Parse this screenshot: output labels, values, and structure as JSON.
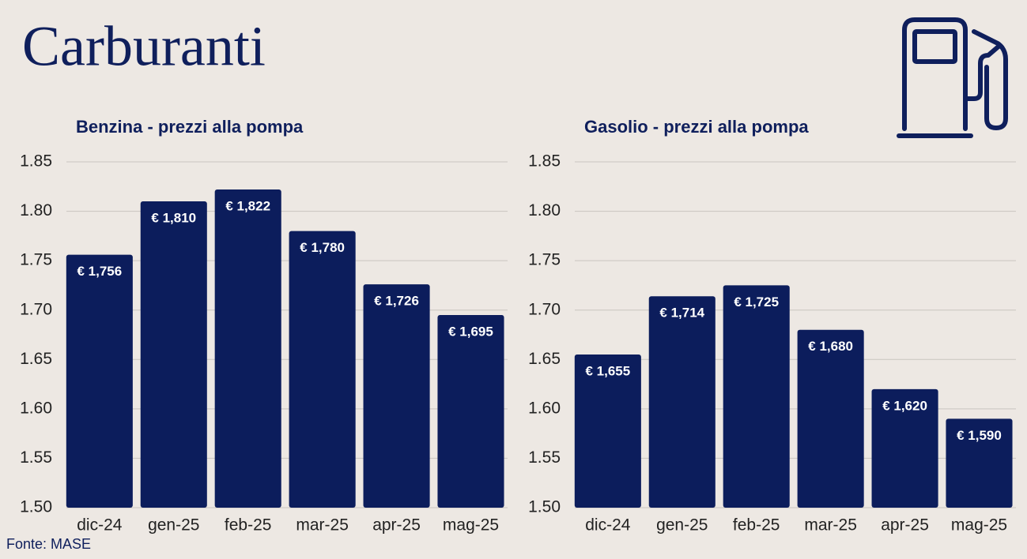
{
  "title": "Carburanti",
  "source": "Fonte: MASE",
  "chart_data": [
    {
      "type": "bar",
      "title": "Benzina - prezzi alla pompa",
      "categories": [
        "dic-24",
        "gen-25",
        "feb-25",
        "mar-25",
        "apr-25",
        "mag-25"
      ],
      "values": [
        1.756,
        1.81,
        1.822,
        1.78,
        1.726,
        1.695
      ],
      "value_labels": [
        "€ 1,756",
        "€ 1,810",
        "€ 1,822",
        "€ 1,780",
        "€ 1,726",
        "€ 1,695"
      ],
      "color": "#0c1d5c",
      "ylim": [
        1.5,
        1.85
      ],
      "yticks": [
        {
          "value": 1.5,
          "label": "1.50"
        },
        1.55,
        {
          "value": 1.6,
          "label": "1.60"
        },
        1.65,
        {
          "value": 1.7,
          "label": "1.70"
        },
        1.75,
        {
          "value": 1.8,
          "label": "1.80"
        },
        1.85
      ],
      "grid": true
    },
    {
      "type": "bar",
      "title": "Gasolio - prezzi alla pompa",
      "categories": [
        "dic-24",
        "gen-25",
        "feb-25",
        "mar-25",
        "apr-25",
        "mag-25"
      ],
      "values": [
        1.655,
        1.714,
        1.725,
        1.68,
        1.62,
        1.59
      ],
      "value_labels": [
        "€ 1,655",
        "€ 1,714",
        "€ 1,725",
        "€ 1,680",
        "€ 1,620",
        "€ 1,590"
      ],
      "color": "#0c1d5c",
      "ylim": [
        1.5,
        1.85
      ],
      "yticks": [
        {
          "value": 1.5,
          "label": "1.50"
        },
        1.55,
        {
          "value": 1.6,
          "label": "1.60"
        },
        1.65,
        {
          "value": 1.7,
          "label": "1.70"
        },
        1.75,
        {
          "value": 1.8,
          "label": "1.80"
        },
        1.85
      ],
      "grid": true
    }
  ]
}
